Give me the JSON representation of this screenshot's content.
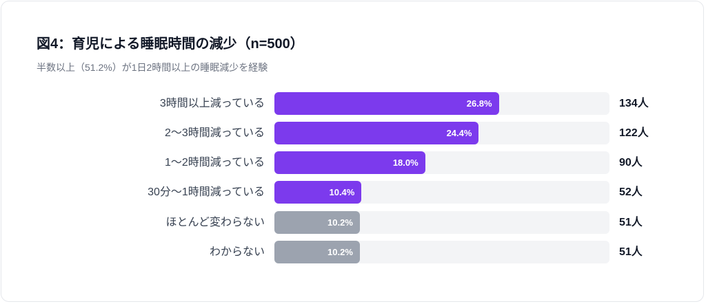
{
  "chart_data": {
    "type": "bar",
    "orientation": "horizontal",
    "title": "図4：育児による睡眠時間の減少（n=500）",
    "subtitle": "半数以上（51.2%）が1日2時間以上の睡眠減少を経験",
    "xlim": [
      0,
      40
    ],
    "grid": false,
    "categories": [
      "3時間以上減っている",
      "2〜3時間減っている",
      "1〜2時間減っている",
      "30分〜1時間減っている",
      "ほとんど変わらない",
      "わからない"
    ],
    "values": [
      26.8,
      24.4,
      18.0,
      10.4,
      10.2,
      10.2
    ],
    "value_labels": [
      "26.8%",
      "24.4%",
      "18.0%",
      "10.4%",
      "10.2%",
      "10.2%"
    ],
    "counts": [
      "134人",
      "122人",
      "90人",
      "52人",
      "51人",
      "51人"
    ],
    "colors": [
      "#7c3aed",
      "#7c3aed",
      "#7c3aed",
      "#7c3aed",
      "#9ca3af",
      "#9ca3af"
    ],
    "track_color": "#f3f4f6"
  }
}
